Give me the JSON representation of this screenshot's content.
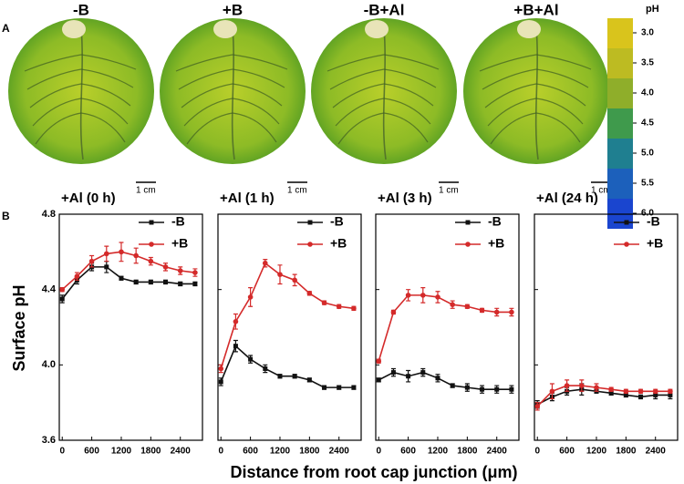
{
  "panel_a": {
    "label": "A",
    "photos": [
      "-B",
      "+B",
      "-B+Al",
      "+B+Al"
    ],
    "scale_bar": "1 cm",
    "colorbar": {
      "title": "pH",
      "ticks": [
        {
          "value": 3,
          "label": "3.0"
        },
        {
          "value": 3.5,
          "label": "3.5"
        },
        {
          "value": 4,
          "label": "4.0"
        },
        {
          "value": 4.5,
          "label": "4.5"
        },
        {
          "value": 5,
          "label": "5.0"
        },
        {
          "value": 5.5,
          "label": "5.5"
        },
        {
          "value": 6,
          "label": "6.0"
        }
      ],
      "colors": [
        "#d9c41c",
        "#bdbb22",
        "#8fae2a",
        "#3f9a4c",
        "#1f7f90",
        "#1c60bb",
        "#1a45cf"
      ]
    }
  },
  "panel_b": {
    "label": "B",
    "ylabel": "Surface pH",
    "xlabel": "Distance from root cap junction (μm)"
  },
  "chart_data": [
    {
      "type": "line",
      "title": "+Al (0 h)",
      "x": [
        0,
        300,
        600,
        900,
        1200,
        1500,
        1800,
        2100,
        2400,
        2700
      ],
      "series": [
        {
          "name": "-B",
          "color": "#111111",
          "marker": "square",
          "values": [
            4.35,
            4.45,
            4.52,
            4.52,
            4.46,
            4.44,
            4.44,
            4.44,
            4.43,
            4.43
          ],
          "errors": [
            0.02,
            0.02,
            0.02,
            0.03,
            0.01,
            0.01,
            0.01,
            0.01,
            0.01,
            0.01
          ]
        },
        {
          "name": "+B",
          "color": "#d42a2a",
          "marker": "circle",
          "values": [
            4.4,
            4.47,
            4.55,
            4.59,
            4.6,
            4.58,
            4.55,
            4.52,
            4.5,
            4.49
          ],
          "errors": [
            0.01,
            0.02,
            0.03,
            0.04,
            0.05,
            0.04,
            0.02,
            0.02,
            0.02,
            0.02
          ]
        }
      ],
      "xlim": [
        -60,
        2850
      ],
      "ylim": [
        3.6,
        4.8
      ],
      "xticks": [
        0,
        600,
        1200,
        1800,
        2400
      ],
      "yticks": [
        {
          "value": 3.6,
          "label": "3.6"
        },
        {
          "value": 4,
          "label": "4.0"
        },
        {
          "value": 4.4,
          "label": "4.4"
        },
        {
          "value": 4.8,
          "label": "4.8"
        }
      ]
    },
    {
      "type": "line",
      "title": "+Al (1 h)",
      "x": [
        0,
        300,
        600,
        900,
        1200,
        1500,
        1800,
        2100,
        2400,
        2700
      ],
      "series": [
        {
          "name": "-B",
          "color": "#111111",
          "marker": "square",
          "values": [
            3.91,
            4.1,
            4.03,
            3.98,
            3.94,
            3.94,
            3.92,
            3.88,
            3.88,
            3.88
          ],
          "errors": [
            0.02,
            0.03,
            0.02,
            0.02,
            0.01,
            0.01,
            0.01,
            0.01,
            0.01,
            0.01
          ]
        },
        {
          "name": "+B",
          "color": "#d42a2a",
          "marker": "circle",
          "values": [
            3.98,
            4.23,
            4.36,
            4.54,
            4.48,
            4.45,
            4.38,
            4.33,
            4.31,
            4.3
          ],
          "errors": [
            0.02,
            0.04,
            0.05,
            0.02,
            0.05,
            0.03,
            0.01,
            0.01,
            0.01,
            0.01
          ]
        }
      ],
      "xlim": [
        -60,
        2850
      ],
      "ylim": [
        3.6,
        4.8
      ],
      "xticks": [
        0,
        600,
        1200,
        1800,
        2400
      ],
      "yticks": [
        {
          "value": 3.6,
          "label": "3.6"
        },
        {
          "value": 4,
          "label": "4.0"
        },
        {
          "value": 4.4,
          "label": "4.4"
        },
        {
          "value": 4.8,
          "label": "4.8"
        }
      ]
    },
    {
      "type": "line",
      "title": "+Al (3 h)",
      "x": [
        0,
        300,
        600,
        900,
        1200,
        1500,
        1800,
        2100,
        2400,
        2700
      ],
      "series": [
        {
          "name": "-B",
          "color": "#111111",
          "marker": "square",
          "values": [
            3.92,
            3.96,
            3.94,
            3.96,
            3.93,
            3.89,
            3.88,
            3.87,
            3.87,
            3.87
          ],
          "errors": [
            0.01,
            0.02,
            0.03,
            0.02,
            0.02,
            0.01,
            0.02,
            0.02,
            0.02,
            0.02
          ]
        },
        {
          "name": "+B",
          "color": "#d42a2a",
          "marker": "circle",
          "values": [
            4.02,
            4.28,
            4.37,
            4.37,
            4.36,
            4.32,
            4.31,
            4.29,
            4.28,
            4.28
          ],
          "errors": [
            0.01,
            0.01,
            0.03,
            0.04,
            0.03,
            0.02,
            0.01,
            0.01,
            0.02,
            0.02
          ]
        }
      ],
      "xlim": [
        -60,
        2850
      ],
      "ylim": [
        3.6,
        4.8
      ],
      "xticks": [
        0,
        600,
        1200,
        1800,
        2400
      ],
      "yticks": [
        {
          "value": 3.6,
          "label": "3.6"
        },
        {
          "value": 4,
          "label": "4.0"
        },
        {
          "value": 4.4,
          "label": "4.4"
        },
        {
          "value": 4.8,
          "label": "4.8"
        }
      ]
    },
    {
      "type": "line",
      "title": "+Al (24 h)",
      "x": [
        0,
        300,
        600,
        900,
        1200,
        1500,
        1800,
        2100,
        2400,
        2700
      ],
      "series": [
        {
          "name": "-B",
          "color": "#111111",
          "marker": "square",
          "values": [
            3.79,
            3.83,
            3.86,
            3.87,
            3.86,
            3.85,
            3.84,
            3.83,
            3.84,
            3.84
          ],
          "errors": [
            0.02,
            0.02,
            0.02,
            0.03,
            0.01,
            0.01,
            0.01,
            0.01,
            0.02,
            0.02
          ]
        },
        {
          "name": "+B",
          "color": "#d42a2a",
          "marker": "circle",
          "values": [
            3.78,
            3.86,
            3.89,
            3.89,
            3.88,
            3.87,
            3.86,
            3.86,
            3.86,
            3.86
          ],
          "errors": [
            0.02,
            0.04,
            0.03,
            0.03,
            0.02,
            0.01,
            0.01,
            0.01,
            0.01,
            0.01
          ]
        }
      ],
      "xlim": [
        -60,
        2850
      ],
      "ylim": [
        3.6,
        4.8
      ],
      "xticks": [
        0,
        600,
        1200,
        1800,
        2400
      ],
      "yticks": [
        {
          "value": 3.6,
          "label": "3.6"
        },
        {
          "value": 4,
          "label": "4.0"
        },
        {
          "value": 4.4,
          "label": "4.4"
        },
        {
          "value": 4.8,
          "label": "4.8"
        }
      ]
    }
  ]
}
